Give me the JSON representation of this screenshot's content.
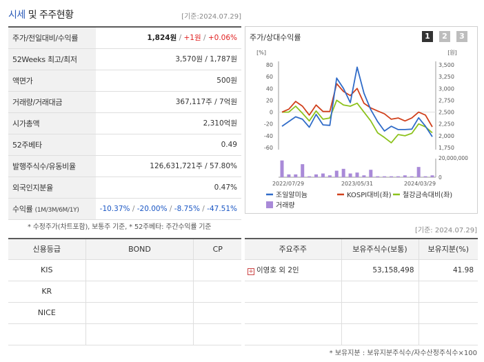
{
  "header": {
    "title_accent": "시세",
    "title_rest": " 및 주주현황",
    "date": "[기준:2024.07.29]"
  },
  "summary": {
    "rows": [
      {
        "label": "주가/전일대비/수익률"
      },
      {
        "label": "52Weeks 최고/최저",
        "value": "3,570원 / 1,787원"
      },
      {
        "label": "액면가",
        "value": "500원"
      },
      {
        "label": "거래량/거래대금",
        "value": "367,117주 / 7억원"
      },
      {
        "label": "시가총액",
        "value": "2,310억원"
      },
      {
        "label": "52주베타",
        "value": "0.49"
      },
      {
        "label": "발행주식수/유동비율",
        "value": "126,631,721주 / 57.80%"
      },
      {
        "label": "외국인지분율",
        "value": "0.47%"
      },
      {
        "label": "수익률",
        "label_small": "(1M/3M/6M/1Y)"
      }
    ],
    "price": {
      "value": "1,824원",
      "sep1": " / ",
      "change": "+1원",
      "sep2": " / ",
      "rate": "+0.06%"
    },
    "returns": {
      "r1m": "-10.37%",
      "r3m": "-20.00%",
      "r6m": "-8.75%",
      "r1y": "-47.51%",
      "sep": "/"
    }
  },
  "footnote1": "* 수정주가(차트포함), 보통주 기준, * 52주베타: 주간수익률 기준",
  "chart": {
    "title": "주가/상대수익률",
    "pages": [
      "1",
      "2",
      "3"
    ],
    "left_unit": "[%]",
    "right_unit": "[원]",
    "left_ticks": [
      "80",
      "60",
      "40",
      "20",
      "0",
      "-20",
      "-40",
      "-60"
    ],
    "right_ticks": [
      "3,500",
      "3,250",
      "3,000",
      "2,750",
      "2,500",
      "2,250",
      "2,000",
      "1,750"
    ],
    "volume_ticks": [
      "20,000,000",
      "0"
    ],
    "x_labels": [
      "2022/07/29",
      "2023/05/31",
      "2024/03/29"
    ],
    "legend": [
      {
        "label": "조일알미늄",
        "color": "#2f6bc8"
      },
      {
        "label": "KOSPI대비(좌)",
        "color": "#d0401c"
      },
      {
        "label": "철강금속대비(좌)",
        "color": "#8cc21c"
      },
      {
        "label": "거래량",
        "color": "#a98ad8"
      }
    ]
  },
  "chart_data": {
    "type": "line",
    "x_labels": [
      "2022/07/29",
      "2023/05/31",
      "2024/03/29"
    ],
    "series": [
      {
        "name": "조일알미늄",
        "axis": "right",
        "values": [
          2200,
          2300,
          2400,
          2350,
          2180,
          2450,
          2230,
          2220,
          3220,
          3000,
          2700,
          3450,
          2900,
          2550,
          2300,
          2100,
          2200,
          2130,
          2130,
          2140,
          2380,
          2200,
          1980
        ]
      },
      {
        "name": "KOSPI대비(좌)",
        "axis": "left",
        "values": [
          0,
          5,
          18,
          10,
          -5,
          12,
          1,
          1,
          48,
          35,
          28,
          40,
          15,
          7,
          2,
          -3,
          -12,
          -10,
          -15,
          -10,
          0,
          -5,
          -25
        ]
      },
      {
        "name": "철강금속대비(좌)",
        "axis": "left",
        "values": [
          0,
          0,
          10,
          -2,
          -15,
          2,
          -12,
          -10,
          20,
          12,
          10,
          15,
          0,
          -15,
          -35,
          -43,
          -52,
          -38,
          -40,
          -36,
          -20,
          -25,
          -35
        ]
      },
      {
        "name": "거래량",
        "axis": "volume",
        "values": [
          18,
          3,
          3,
          14,
          1,
          3,
          4,
          2,
          7,
          9,
          4,
          5,
          2,
          8,
          1,
          1,
          1,
          1,
          2,
          1,
          11,
          1,
          2
        ]
      }
    ],
    "left_ylim": [
      -60,
      80
    ],
    "right_ylim": [
      1750,
      3500
    ],
    "volume_ylim": [
      0,
      20
    ],
    "volume_unit_note": "millions of shares"
  },
  "date2": "[기준: 2024.07.29]",
  "credit": {
    "headers": [
      "신용등급",
      "BOND",
      "CP"
    ],
    "rows": [
      {
        "rating": "KIS",
        "bond": "",
        "cp": ""
      },
      {
        "rating": "KR",
        "bond": "",
        "cp": ""
      },
      {
        "rating": "NICE",
        "bond": "",
        "cp": ""
      },
      {
        "rating": "",
        "bond": "",
        "cp": ""
      }
    ]
  },
  "holders": {
    "headers": [
      "주요주주",
      "보유주식수(보통)",
      "보유지분(%)"
    ],
    "rows": [
      {
        "name": "이영호 외 2인",
        "shares": "53,158,498",
        "pct": "41.98"
      }
    ]
  },
  "footnote2": "* 보유지분 : 보유지분주식수/자수산정주식수×100"
}
